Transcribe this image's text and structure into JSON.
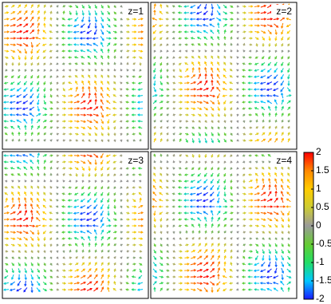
{
  "panels": [
    {
      "label": "z=1"
    },
    {
      "label": "z=2"
    },
    {
      "label": "z=3"
    },
    {
      "label": "z=4"
    }
  ],
  "colorbar": {
    "range": [
      -2,
      2
    ],
    "ticks": [
      2,
      1.5,
      1,
      0.5,
      0,
      -0.5,
      -1,
      -1.5,
      -2
    ],
    "colors": [
      "#1a1aff",
      "#00c8ff",
      "#22dd66",
      "#66cc33",
      "#9a9a9a",
      "#cccc33",
      "#ffcc00",
      "#ff8800",
      "#ff0000"
    ]
  }
}
